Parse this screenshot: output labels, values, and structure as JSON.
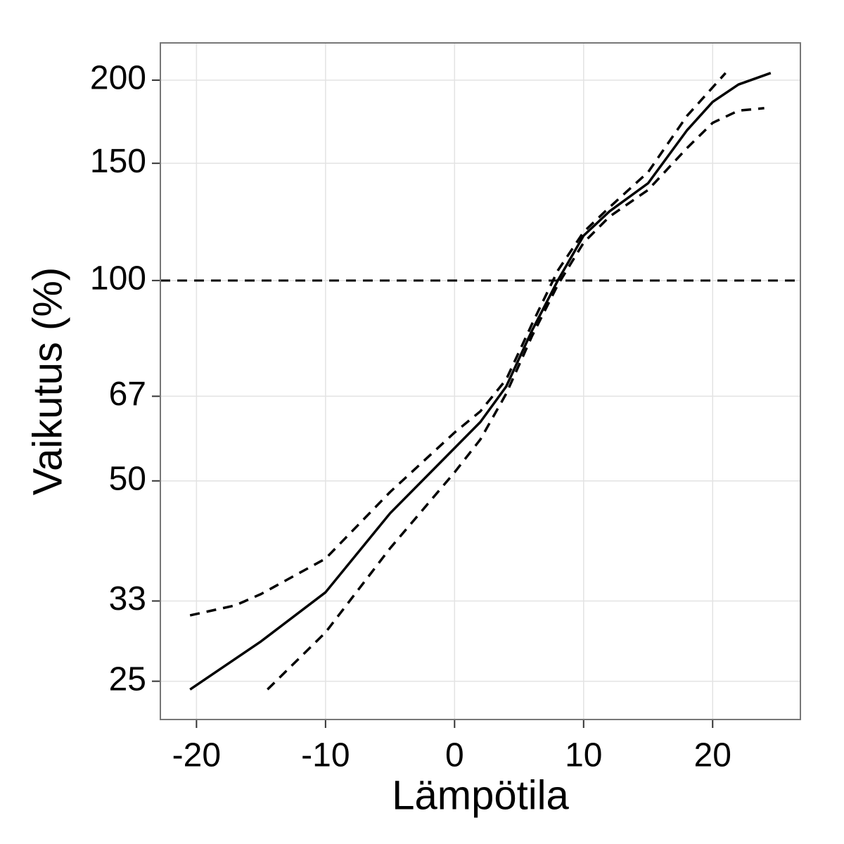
{
  "chart_data": {
    "type": "line",
    "xlabel": "Lämpötila",
    "ylabel": "Vaikutus (%)",
    "xlim": [
      -22.8,
      26.8
    ],
    "xticks": [
      -20,
      -10,
      0,
      10,
      20
    ],
    "ylim": [
      21.9,
      227.5
    ],
    "yticks": [
      25,
      33,
      50,
      67,
      100,
      150,
      200
    ],
    "ylog": true,
    "grid": true,
    "hline": 100,
    "series": [
      {
        "color": "#000000",
        "dashed": false,
        "x": [
          -20.5,
          -15,
          -10,
          -5,
          0,
          2,
          4,
          6,
          8,
          10,
          12,
          15,
          18,
          20,
          22,
          24.5
        ],
        "values": [
          24.3,
          28.7,
          34,
          44.7,
          56,
          61.3,
          69.3,
          84.1,
          100,
          116.8,
          127,
          140,
          168,
          185.5,
          197,
          205
        ]
      },
      {
        "color": "#000000",
        "dashed": true,
        "x": [
          -20.5,
          -17,
          -15,
          -10,
          -5,
          0,
          2,
          4,
          6,
          8,
          10,
          12,
          15,
          18,
          21
        ],
        "values": [
          31.4,
          32.5,
          33.8,
          38.2,
          48.1,
          59.1,
          63.6,
          71,
          86,
          103.5,
          118.3,
          128.8,
          145.5,
          176.6,
          205
        ]
      },
      {
        "color": "#000000",
        "dashed": true,
        "x": [
          -14.5,
          -10,
          -5,
          0,
          2,
          4,
          6,
          8,
          10,
          12,
          15,
          18,
          20,
          22,
          24
        ],
        "values": [
          24.3,
          29.6,
          39.6,
          51.5,
          57.7,
          67.6,
          82.5,
          98.5,
          114,
          124.7,
          136.8,
          158,
          172.5,
          180,
          181.5
        ]
      }
    ]
  }
}
